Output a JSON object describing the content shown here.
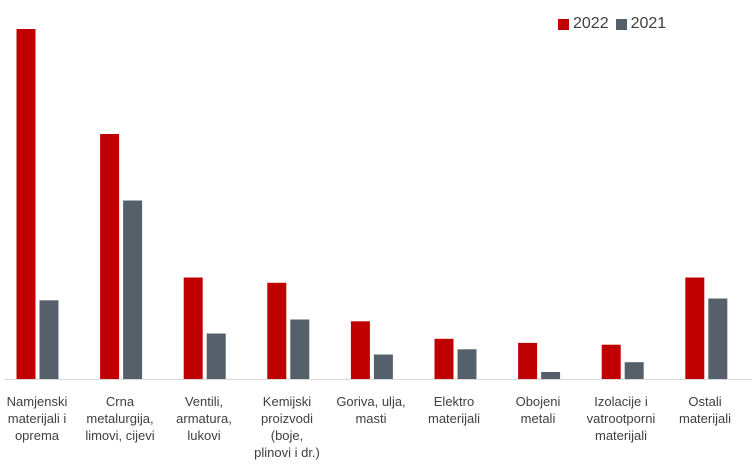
{
  "chart_data": {
    "type": "bar",
    "categories": [
      "Namjenski\nmaterijali i\noprema",
      "Crna\nmetalurgija,\nlimovi, cijevi",
      "Ventili,\narmatura,\nlukovi",
      "Kemijski\nproizvodi\n(boje,\nplinovi i dr.)",
      "Goriva, ulja,\nmasti",
      "Elektro\nmaterijali",
      "Obojeni\nmetali",
      "Izolacije i\nvatrootporni\nmaterijali",
      "Ostali\nmaterijali"
    ],
    "series": [
      {
        "name": "2022",
        "color": "#c00000",
        "values": [
          100,
          70,
          29,
          27.5,
          16.5,
          11.5,
          10.3,
          9.8,
          29
        ]
      },
      {
        "name": "2021",
        "color": "#56606b",
        "values": [
          22.5,
          51,
          13,
          17,
          7,
          8.5,
          2,
          4.8,
          23
        ]
      }
    ],
    "ylim": [
      0,
      100
    ],
    "grid": false,
    "legend_position": "top-right"
  }
}
